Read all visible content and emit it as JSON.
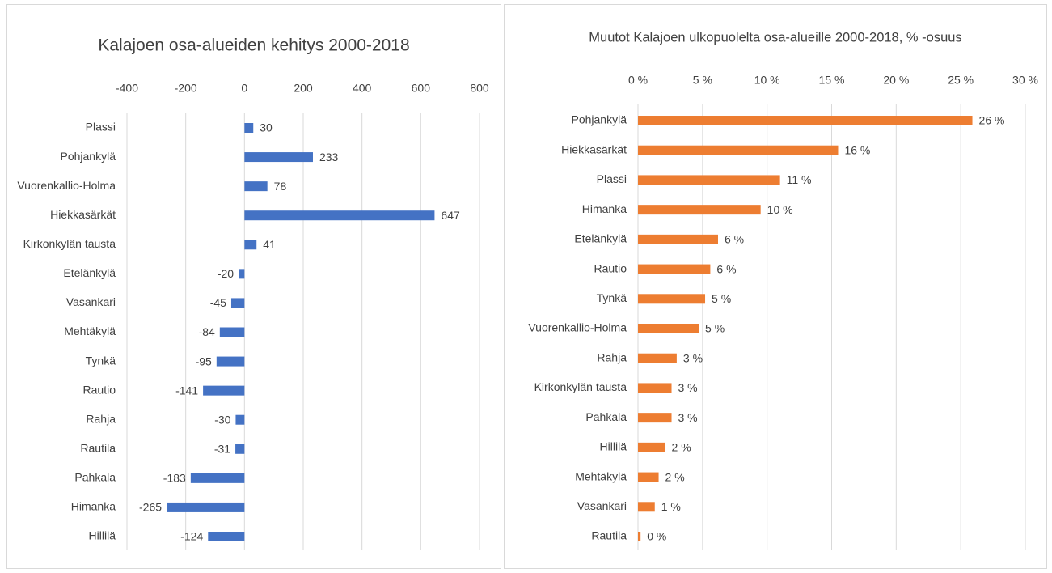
{
  "chart_data": [
    {
      "type": "bar",
      "orientation": "horizontal",
      "title": "Kalajoen osa-alueiden kehitys 2000-2018",
      "categories": [
        "Plassi",
        "Pohjankylä",
        "Vuorenkallio-Holma",
        "Hiekkasärkät",
        "Kirkonkylän tausta",
        "Etelänkylä",
        "Vasankari",
        "Mehtäkylä",
        "Tynkä",
        "Rautio",
        "Rahja",
        "Rautila",
        "Pahkala",
        "Himanka",
        "Hillilä"
      ],
      "values": [
        30,
        233,
        78,
        647,
        41,
        -20,
        -45,
        -84,
        -95,
        -141,
        -30,
        -31,
        -183,
        -265,
        -124
      ],
      "color": "#4472c4",
      "xlim": [
        -400,
        800
      ],
      "xticks": [
        -400,
        -200,
        0,
        200,
        400,
        600,
        800
      ],
      "grid": true
    },
    {
      "type": "bar",
      "orientation": "horizontal",
      "title": "Muutot Kalajoen ulkopuolelta osa-alueille 2000-2018, % -osuus",
      "categories": [
        "Pohjankylä",
        "Hiekkasärkät",
        "Plassi",
        "Himanka",
        "Etelänkylä",
        "Rautio",
        "Tynkä",
        "Vuorenkallio-Holma",
        "Rahja",
        "Kirkonkylän tausta",
        "Pahkala",
        "Hillilä",
        "Mehtäkylä",
        "Vasankari",
        "Rautila"
      ],
      "values": [
        25.9,
        15.5,
        11.0,
        9.5,
        6.2,
        5.6,
        5.2,
        4.7,
        3.0,
        2.6,
        2.6,
        2.1,
        1.6,
        1.3,
        0.2
      ],
      "value_labels": [
        "26 %",
        "16 %",
        "11 %",
        "10 %",
        "6 %",
        "6 %",
        "5 %",
        "5 %",
        "3 %",
        "3 %",
        "3 %",
        "2 %",
        "2 %",
        "1 %",
        "0 %"
      ],
      "color": "#ed7d31",
      "xlim": [
        0,
        30
      ],
      "xticks": [
        {
          "value": 0,
          "label": "0 %"
        },
        {
          "value": 5,
          "label": "5 %"
        },
        {
          "value": 10,
          "label": "10 %"
        },
        {
          "value": 15,
          "label": "15 %"
        },
        {
          "value": 20,
          "label": "20 %"
        },
        {
          "value": 25,
          "label": "25 %"
        },
        {
          "value": 30,
          "label": "30 %"
        }
      ],
      "grid": true
    }
  ]
}
